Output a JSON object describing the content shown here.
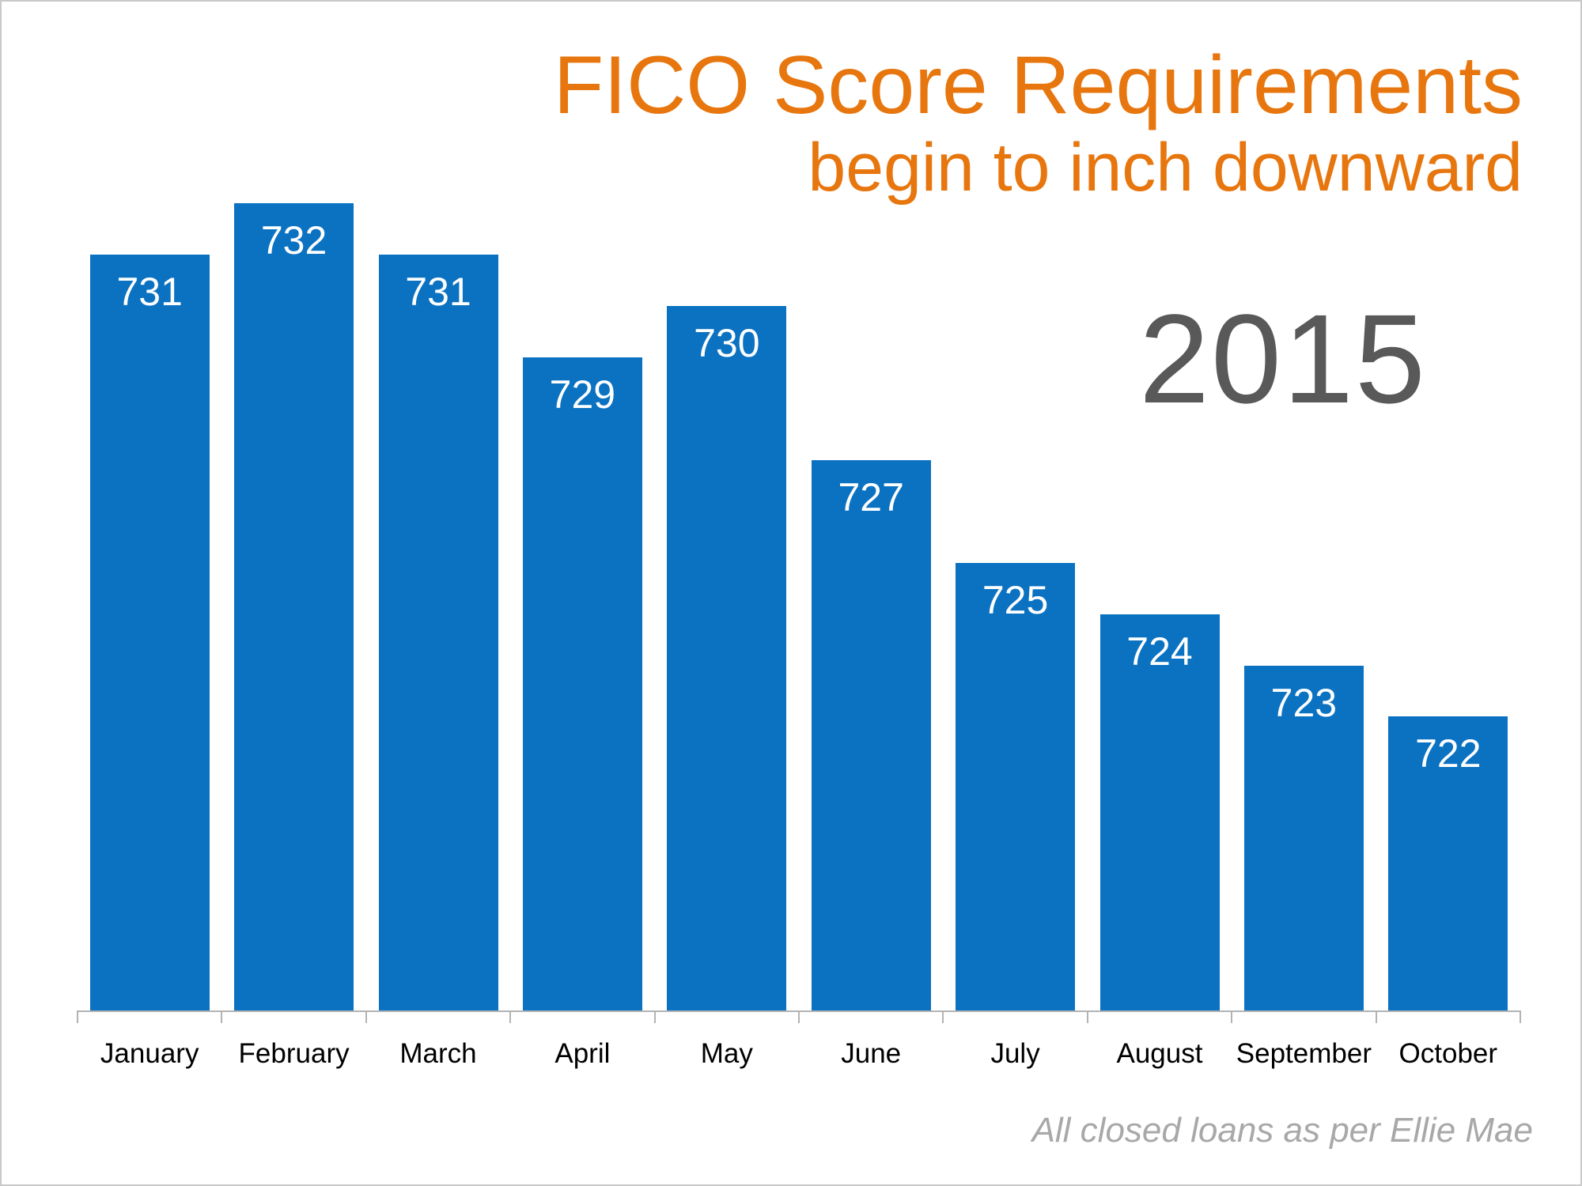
{
  "header": {
    "title": "FICO Score Requirements",
    "subtitle": "begin to inch downward",
    "year_label": "2015"
  },
  "footer": {
    "note": "All closed loans as per Ellie Mae"
  },
  "colors": {
    "bar": "#0b72c2",
    "title": "#e7760e",
    "year": "#595959",
    "value_label": "#ffffff",
    "month_label": "#000000",
    "axis": "#b3b3b3",
    "footer": "#a8a8a8",
    "background": "#ffffff",
    "border": "#c9c9c9"
  },
  "chart_data": {
    "type": "bar",
    "title": "FICO Score Requirements begin to inch downward",
    "subtitle_year": "2015",
    "categories": [
      "January",
      "February",
      "March",
      "April",
      "May",
      "June",
      "July",
      "August",
      "September",
      "October"
    ],
    "values": [
      731,
      732,
      731,
      729,
      730,
      727,
      725,
      724,
      723,
      722
    ],
    "xlabel": "",
    "ylabel": "",
    "ylim": [
      716,
      734
    ],
    "grid": false,
    "legend": "none",
    "y_axis_visible": false,
    "value_labels_position": "inside-top",
    "annotation": "All closed loans as per Ellie Mae"
  }
}
